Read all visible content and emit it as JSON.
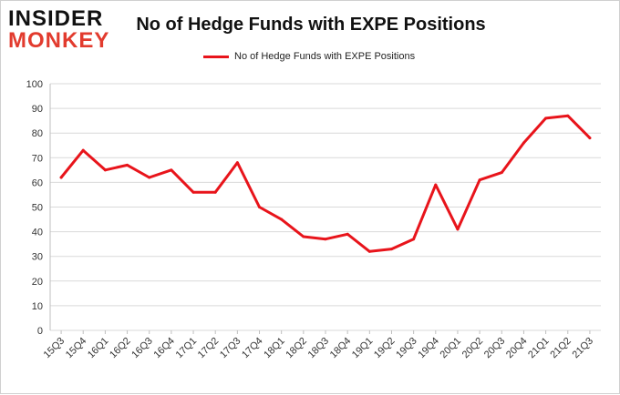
{
  "logo": {
    "line1": "INSIDER",
    "line2": "MONKEY"
  },
  "chart_data": {
    "type": "line",
    "title": "No of Hedge Funds with EXPE Positions",
    "categories": [
      "15Q3",
      "15Q4",
      "16Q1",
      "16Q2",
      "16Q3",
      "16Q4",
      "17Q1",
      "17Q2",
      "17Q3",
      "17Q4",
      "18Q1",
      "18Q2",
      "18Q3",
      "18Q4",
      "19Q1",
      "19Q2",
      "19Q3",
      "19Q4",
      "20Q1",
      "20Q2",
      "20Q3",
      "20Q4",
      "21Q1",
      "21Q2",
      "21Q3"
    ],
    "series": [
      {
        "name": "No of Hedge Funds with EXPE Positions",
        "color": "#e8141b",
        "values": [
          62,
          73,
          65,
          67,
          62,
          65,
          56,
          56,
          68,
          50,
          45,
          38,
          37,
          39,
          32,
          33,
          37,
          59,
          41,
          61,
          64,
          76,
          86,
          87,
          78
        ]
      }
    ],
    "xlabel": "",
    "ylabel": "",
    "ylim": [
      0,
      100
    ],
    "yticks": [
      0,
      10,
      20,
      30,
      40,
      50,
      60,
      70,
      80,
      90,
      100
    ],
    "grid": true,
    "legend_position": "top-center"
  }
}
